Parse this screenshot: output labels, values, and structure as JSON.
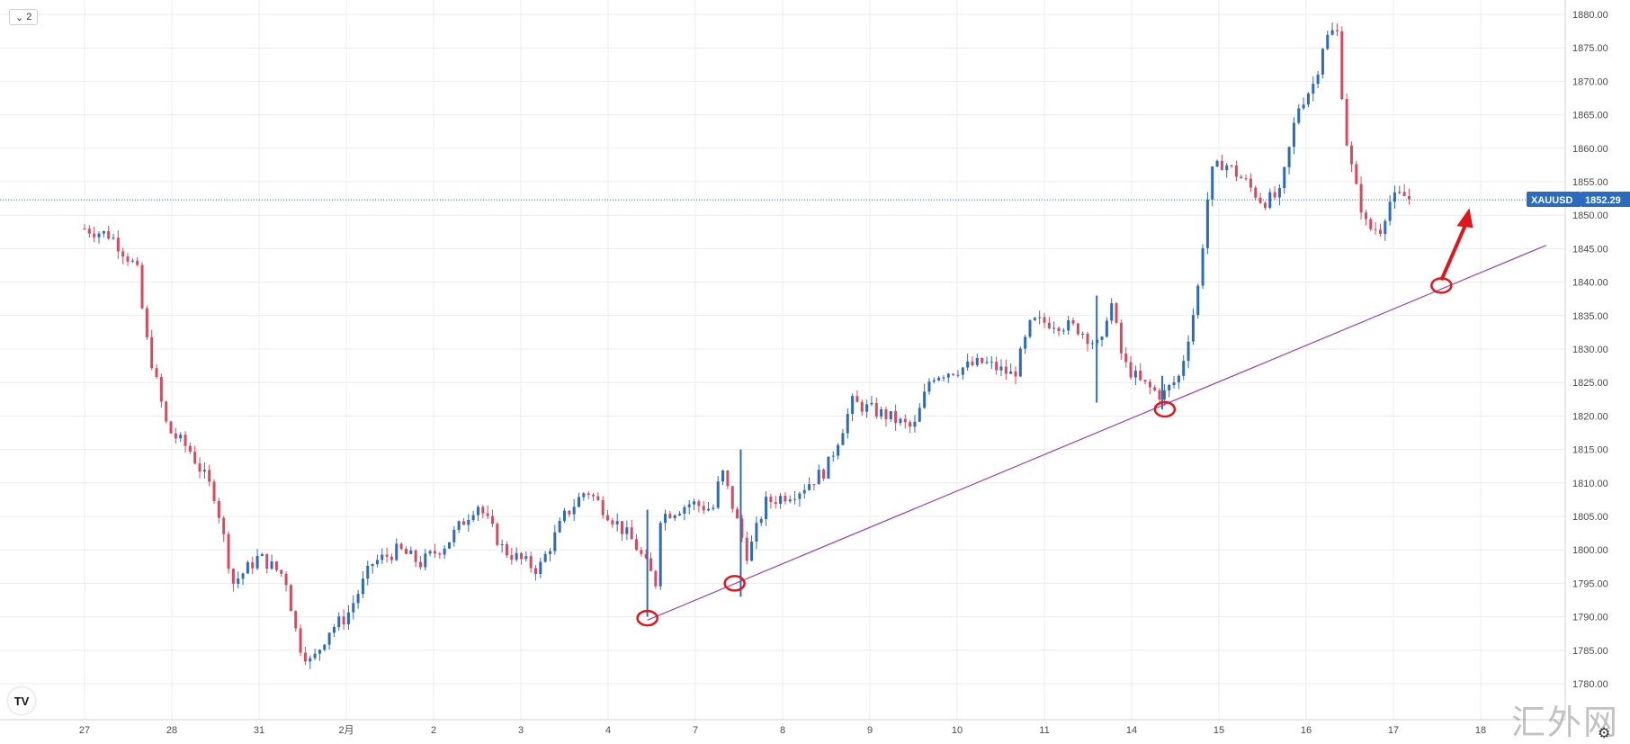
{
  "header": {
    "ohlc_text": "",
    "interval_badge": "2"
  },
  "symbol": "XAUUSD",
  "last_price": "1852.29",
  "watermark_text": "汇外网",
  "logo_text": "TV",
  "colors": {
    "up": "#2a6bbf",
    "down": "#d9485f",
    "grid": "#ececec",
    "trendline": "#9b3db8",
    "marker": "#e0161b",
    "price_line": "#2a6bbf",
    "symbol_bg": "#2a6bbf"
  },
  "icons": [
    "chevron-down-icon",
    "tradingview-logo-icon",
    "gear-icon"
  ],
  "chart_data": {
    "type": "candlestick",
    "ylim": [
      1776,
      1882
    ],
    "x_ticks": [
      "27",
      "28",
      "31",
      "2月",
      "2",
      "3",
      "4",
      "7",
      "8",
      "9",
      "10",
      "11",
      "14",
      "15",
      "16",
      "17",
      "18"
    ],
    "y_ticks": [
      "1780.00",
      "1785.00",
      "1790.00",
      "1795.00",
      "1800.00",
      "1805.00",
      "1810.00",
      "1815.00",
      "1820.00",
      "1825.00",
      "1830.00",
      "1835.00",
      "1840.00",
      "1845.00",
      "1850.00",
      "1855.00",
      "1860.00",
      "1865.00",
      "1870.00",
      "1875.00",
      "1880.00"
    ],
    "price_path": [
      [
        0,
        1848
      ],
      [
        0.3,
        1847
      ],
      [
        0.6,
        1842
      ],
      [
        0.7,
        1832
      ],
      [
        0.95,
        1818
      ],
      [
        1.2,
        1815
      ],
      [
        1.5,
        1808
      ],
      [
        1.7,
        1795
      ],
      [
        2.0,
        1799
      ],
      [
        2.3,
        1796
      ],
      [
        2.45,
        1786
      ],
      [
        2.6,
        1783
      ],
      [
        2.8,
        1788
      ],
      [
        3.0,
        1790
      ],
      [
        3.3,
        1798
      ],
      [
        3.6,
        1800
      ],
      [
        3.85,
        1798
      ],
      [
        4.15,
        1801
      ],
      [
        4.5,
        1807
      ],
      [
        4.8,
        1800
      ],
      [
        5.2,
        1797
      ],
      [
        5.5,
        1805
      ],
      [
        5.75,
        1809
      ],
      [
        6.1,
        1804
      ],
      [
        6.3,
        1801
      ],
      [
        6.55,
        1795
      ],
      [
        6.6,
        1805
      ],
      [
        6.95,
        1807
      ],
      [
        7.2,
        1806
      ],
      [
        7.3,
        1812
      ],
      [
        7.6,
        1799
      ],
      [
        7.8,
        1807
      ],
      [
        8.2,
        1809
      ],
      [
        8.5,
        1812
      ],
      [
        8.8,
        1822
      ],
      [
        9.2,
        1820
      ],
      [
        9.5,
        1818
      ],
      [
        9.7,
        1826
      ],
      [
        10.0,
        1827
      ],
      [
        10.3,
        1828
      ],
      [
        10.65,
        1826
      ],
      [
        10.85,
        1834
      ],
      [
        11.1,
        1834
      ],
      [
        11.4,
        1833
      ],
      [
        11.65,
        1830
      ],
      [
        11.75,
        1838
      ],
      [
        11.9,
        1828
      ],
      [
        12.1,
        1825
      ],
      [
        12.35,
        1823
      ],
      [
        12.55,
        1826
      ],
      [
        12.75,
        1838
      ],
      [
        12.9,
        1856
      ],
      [
        13.05,
        1858
      ],
      [
        13.3,
        1855
      ],
      [
        13.5,
        1852
      ],
      [
        13.7,
        1853
      ],
      [
        13.9,
        1866
      ],
      [
        14.1,
        1870
      ],
      [
        14.2,
        1876
      ],
      [
        14.35,
        1878
      ],
      [
        14.45,
        1862
      ],
      [
        14.55,
        1855
      ],
      [
        14.7,
        1848
      ],
      [
        14.85,
        1848
      ],
      [
        14.95,
        1852
      ],
      [
        15.1,
        1853
      ],
      [
        15.2,
        1852.3
      ]
    ],
    "wick_spikes": [
      {
        "x": 6.45,
        "low": 1790,
        "high": 1806
      },
      {
        "x": 7.52,
        "low": 1793,
        "high": 1815
      },
      {
        "x": 11.6,
        "low": 1822,
        "high": 1838
      },
      {
        "x": 12.35,
        "low": 1821,
        "high": 1826
      }
    ],
    "trendline": {
      "start": [
        6.45,
        1789.5
      ],
      "end": [
        16.75,
        1845.5
      ]
    },
    "markers": [
      {
        "x": 6.45,
        "y": 1789.8
      },
      {
        "x": 7.45,
        "y": 1795.0
      },
      {
        "x": 12.38,
        "y": 1821.0
      },
      {
        "x": 15.55,
        "y": 1839.5
      }
    ],
    "arrow": {
      "from": [
        15.55,
        1839.5
      ],
      "to": [
        15.85,
        1850.0
      ]
    }
  }
}
